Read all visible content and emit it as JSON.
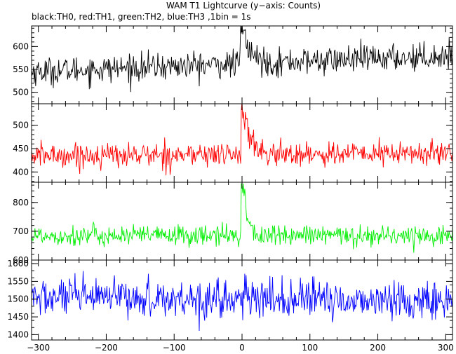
{
  "chart_data": {
    "type": "line",
    "title": "WAM T1 Lightcurve (y−axis: Counts)",
    "subtitle": "black:TH0, red:TH1, green:TH2, blue:TH3 ,1bin = 1s",
    "xlim": [
      -310,
      310
    ],
    "x_ticks": [
      -300,
      -200,
      -100,
      0,
      100,
      200,
      300
    ],
    "x_tick_labels": [
      "−300",
      "−200",
      "−100",
      "0",
      "100",
      "200",
      "300"
    ],
    "bin_seconds": 1,
    "panels": [
      {
        "series_name": "TH0",
        "color": "#000000",
        "ylim": [
          475,
          645
        ],
        "y_ticks": [
          500,
          550,
          600
        ],
        "y_tick_labels": [
          "500",
          "550",
          "600"
        ],
        "baseline_start": 545,
        "baseline_end": 580,
        "noise": 25,
        "burst": {
          "start": -2,
          "end": 6,
          "peak": 640,
          "tail": 40
        }
      },
      {
        "series_name": "TH1",
        "color": "#ff0000",
        "ylim": [
          378,
          546
        ],
        "y_ticks": [
          400,
          450,
          500
        ],
        "y_tick_labels": [
          "400",
          "450",
          "500"
        ],
        "baseline_start": 435,
        "baseline_end": 440,
        "noise": 22,
        "burst": {
          "start": -1,
          "end": 8,
          "peak": 530,
          "tail": 30
        }
      },
      {
        "series_name": "TH2",
        "color": "#00ee00",
        "ylim": [
          600,
          870
        ],
        "y_ticks": [
          600,
          700,
          800
        ],
        "y_tick_labels": [
          "600",
          "700",
          "800"
        ],
        "baseline_start": 685,
        "baseline_end": 685,
        "noise": 30,
        "burst": {
          "start": -1,
          "end": 5,
          "peak": 860,
          "tail": 20
        }
      },
      {
        "series_name": "TH3",
        "color": "#0000ff",
        "ylim": [
          1385,
          1610
        ],
        "y_ticks": [
          1400,
          1450,
          1500,
          1550,
          1600
        ],
        "y_tick_labels": [
          "1400",
          "1450",
          "1500",
          "1550",
          "1600"
        ],
        "baseline_start": 1505,
        "baseline_end": 1495,
        "noise": 45,
        "burst": null
      }
    ]
  }
}
